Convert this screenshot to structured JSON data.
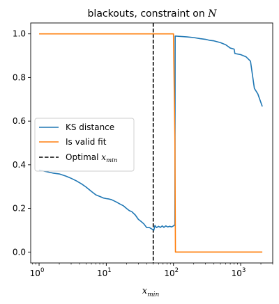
{
  "chart_data": {
    "type": "line",
    "title": {
      "text": "blackouts, constraint on ",
      "math_symbol": "N"
    },
    "xlabel": {
      "base": "x",
      "subscript": "min"
    },
    "ylabel": "",
    "x_scale": "log",
    "xlim": [
      0.75,
      3000
    ],
    "ylim": [
      -0.05,
      1.05
    ],
    "x_ticks": [
      {
        "value": 1,
        "base": "10",
        "exp": "0"
      },
      {
        "value": 10,
        "base": "10",
        "exp": "1"
      },
      {
        "value": 100,
        "base": "10",
        "exp": "2"
      },
      {
        "value": 1000,
        "base": "10",
        "exp": "3"
      }
    ],
    "y_ticks": [
      {
        "value": 0.0,
        "label": "0.0"
      },
      {
        "value": 0.2,
        "label": "0.2"
      },
      {
        "value": 0.4,
        "label": "0.4"
      },
      {
        "value": 0.6,
        "label": "0.6"
      },
      {
        "value": 0.8,
        "label": "0.8"
      },
      {
        "value": 1.0,
        "label": "1.0"
      }
    ],
    "grid": false,
    "legend_position": "center-left",
    "series": [
      {
        "name": "KS distance",
        "color": "#1f77b4",
        "style": "solid",
        "points": [
          [
            1.0,
            0.376
          ],
          [
            1.3,
            0.368
          ],
          [
            1.6,
            0.362
          ],
          [
            2.0,
            0.358
          ],
          [
            2.5,
            0.348
          ],
          [
            3.0,
            0.338
          ],
          [
            3.6,
            0.326
          ],
          [
            4.3,
            0.312
          ],
          [
            5.0,
            0.298
          ],
          [
            6.0,
            0.278
          ],
          [
            7.0,
            0.262
          ],
          [
            8.0,
            0.255
          ],
          [
            9.0,
            0.248
          ],
          [
            10.0,
            0.245
          ],
          [
            11.0,
            0.243
          ],
          [
            12.0,
            0.24
          ],
          [
            14.0,
            0.23
          ],
          [
            16.0,
            0.22
          ],
          [
            18.0,
            0.212
          ],
          [
            20.0,
            0.2
          ],
          [
            22.0,
            0.19
          ],
          [
            24.0,
            0.185
          ],
          [
            27.0,
            0.17
          ],
          [
            30.0,
            0.15
          ],
          [
            33.0,
            0.14
          ],
          [
            36.0,
            0.13
          ],
          [
            40.0,
            0.112
          ],
          [
            44.0,
            0.112
          ],
          [
            48.0,
            0.105
          ],
          [
            51.0,
            0.1
          ],
          [
            53.0,
            0.122
          ],
          [
            56.0,
            0.112
          ],
          [
            60.0,
            0.118
          ],
          [
            64.0,
            0.113
          ],
          [
            68.0,
            0.12
          ],
          [
            72.0,
            0.113
          ],
          [
            77.0,
            0.12
          ],
          [
            82.0,
            0.115
          ],
          [
            88.0,
            0.118
          ],
          [
            94.0,
            0.115
          ],
          [
            100.0,
            0.12
          ],
          [
            105.0,
            0.125
          ],
          [
            106.0,
            0.99
          ],
          [
            130.0,
            0.988
          ],
          [
            160.0,
            0.986
          ],
          [
            200.0,
            0.983
          ],
          [
            250.0,
            0.978
          ],
          [
            300.0,
            0.975
          ],
          [
            350.0,
            0.97
          ],
          [
            400.0,
            0.968
          ],
          [
            500.0,
            0.96
          ],
          [
            600.0,
            0.95
          ],
          [
            700.0,
            0.935
          ],
          [
            800.0,
            0.93
          ],
          [
            820.0,
            0.91
          ],
          [
            1000.0,
            0.905
          ],
          [
            1200.0,
            0.895
          ],
          [
            1400.0,
            0.875
          ],
          [
            1600.0,
            0.75
          ],
          [
            1800.0,
            0.725
          ],
          [
            2100.0,
            0.667
          ]
        ]
      },
      {
        "name": "Is valid fit",
        "color": "#ff7f0e",
        "style": "solid",
        "points": [
          [
            1.0,
            1.0
          ],
          [
            100.0,
            1.0
          ],
          [
            105.0,
            0.52
          ],
          [
            107.0,
            0.0
          ],
          [
            2100.0,
            0.0
          ]
        ]
      }
    ],
    "vlines": [
      {
        "name_text": "Optimal ",
        "name_base": "x",
        "name_sub": "min",
        "x": 50,
        "color": "#000000",
        "style": "dashed"
      }
    ]
  }
}
